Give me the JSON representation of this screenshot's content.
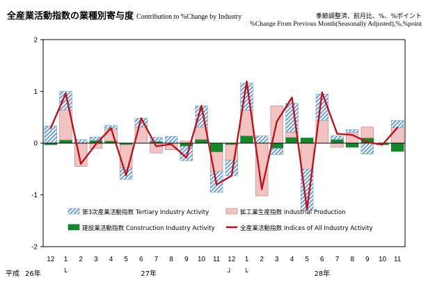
{
  "header": {
    "title": "全産業活動指数の業種別寄与度",
    "subtitle": "Contribution  to  %Change by Industry",
    "note_line1": "季節調整済、前月比、%、%ポイント",
    "note_line2": "%Change From Previous Month(Seasonally Adjusted),%,%point"
  },
  "colors": {
    "tertiary": "#6c9fd6",
    "industrial": "#f2c3c0",
    "construction": "#118a2a",
    "all_industry_line": "#c0111b"
  },
  "chart_data": {
    "type": "bar",
    "stacked": true,
    "categories": [
      "12",
      "1",
      "2",
      "3",
      "4",
      "5",
      "6",
      "7",
      "8",
      "9",
      "10",
      "11",
      "12",
      "1",
      "2",
      "3",
      "4",
      "5",
      "6",
      "7",
      "8",
      "9",
      "10",
      "11"
    ],
    "year_labels": [
      {
        "label": "平成",
        "index": 0
      },
      {
        "label": "26年",
        "index": 0
      },
      {
        "label": "27年",
        "index": 6.5
      },
      {
        "label": "28年",
        "index": 18
      }
    ],
    "era_marks": [
      "└",
      "┘",
      "└"
    ],
    "ylim": [
      -2,
      2
    ],
    "yticks": [
      2,
      1,
      0,
      -1,
      -2
    ],
    "grid": false,
    "series": [
      {
        "key": "tertiary",
        "name": "第3次産業活動指数 Tertiary Industry Activity",
        "kind": "bar",
        "values": [
          0.33,
          0.36,
          0.07,
          0.07,
          0.07,
          -0.22,
          0.17,
          0.08,
          0.13,
          -0.28,
          0.41,
          -0.4,
          -0.3,
          0.52,
          0.14,
          -0.12,
          0.56,
          -0.8,
          0.51,
          0.07,
          0.05,
          -0.21,
          0.0,
          0.14
        ]
      },
      {
        "key": "industrial",
        "name": "鉱工業生産指数 Industrial Production",
        "kind": "bar",
        "values": [
          0.0,
          0.58,
          -0.45,
          -0.1,
          0.23,
          -0.45,
          0.31,
          -0.19,
          -0.13,
          0.04,
          0.24,
          -0.38,
          -0.3,
          0.5,
          -1.02,
          0.72,
          0.1,
          -0.5,
          0.44,
          -0.08,
          0.21,
          0.21,
          0.0,
          0.3
        ]
      },
      {
        "key": "construction",
        "name": "建設業活動指数 Construction Industry Activity",
        "kind": "bar",
        "values": [
          -0.03,
          0.06,
          0.0,
          0.05,
          0.04,
          -0.03,
          0.0,
          0.03,
          0.0,
          -0.06,
          0.07,
          -0.17,
          -0.03,
          0.14,
          0.0,
          -0.1,
          0.11,
          0.1,
          0.0,
          0.07,
          -0.08,
          0.1,
          -0.03,
          -0.16
        ]
      },
      {
        "key": "all_industry",
        "name": "全産業活動指数  Indices of All Industry Activity",
        "kind": "line",
        "values": [
          0.29,
          0.96,
          -0.4,
          -0.02,
          0.29,
          -0.62,
          0.48,
          -0.06,
          -0.02,
          -0.28,
          0.72,
          -0.8,
          -0.63,
          1.19,
          -0.89,
          0.42,
          0.88,
          -1.28,
          0.98,
          0.18,
          0.16,
          0.02,
          -0.03,
          0.3
        ]
      }
    ]
  }
}
